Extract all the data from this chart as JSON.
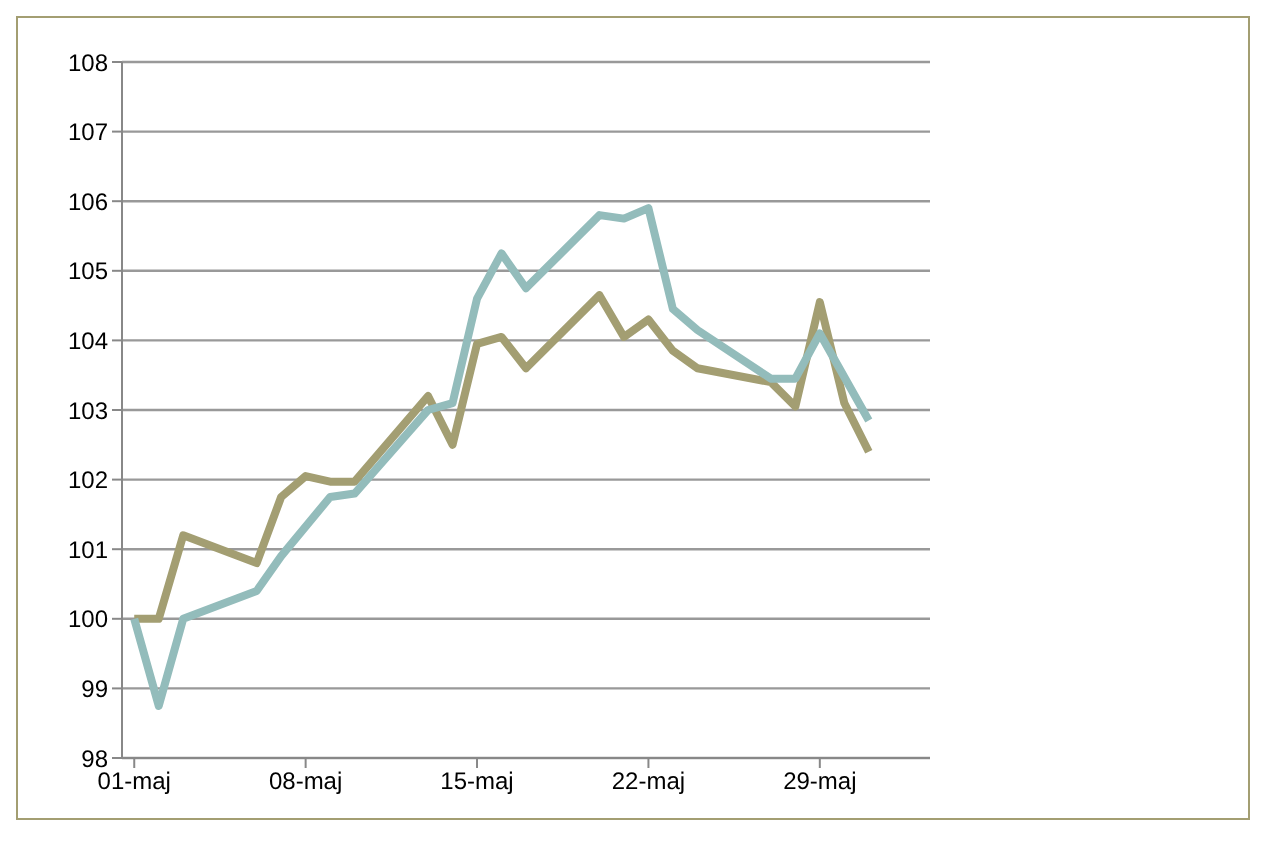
{
  "chart_data": {
    "type": "line",
    "x": [
      "--05-01",
      "--05-02",
      "--05-03",
      "--05-06",
      "--05-07",
      "--05-08",
      "--05-09",
      "--05-10",
      "--05-13",
      "--05-14",
      "--05-15",
      "--05-16",
      "--05-17",
      "--05-20",
      "--05-21",
      "--05-22",
      "--05-23",
      "--05-24",
      "--05-27",
      "--05-28",
      "--05-29",
      "--05-30",
      "--05-31"
    ],
    "series": [
      {
        "color": "#a39e72",
        "values": [
          100.0,
          100.0,
          101.2,
          100.8,
          101.75,
          102.05,
          101.97,
          101.97,
          103.2,
          102.5,
          103.95,
          104.05,
          103.6,
          104.65,
          104.05,
          104.3,
          103.85,
          103.6,
          103.4,
          103.05,
          104.55,
          103.1,
          102.4
        ]
      },
      {
        "color": "#93bcbb",
        "values": [
          100.0,
          98.75,
          100.0,
          100.4,
          100.9,
          null,
          101.75,
          101.8,
          103.0,
          103.1,
          104.6,
          105.25,
          104.75,
          105.8,
          105.75,
          105.9,
          104.45,
          104.15,
          103.45,
          103.45,
          104.1,
          null,
          102.85
        ]
      }
    ],
    "xlim": [
      "--04-30T12:00",
      "--06-02T12:00"
    ],
    "xticks": [
      {
        "value": "--05-01",
        "label": "01-maj"
      },
      {
        "value": "--05-08",
        "label": "08-maj"
      },
      {
        "value": "--05-15",
        "label": "15-maj"
      },
      {
        "value": "--05-22",
        "label": "22-maj"
      },
      {
        "value": "--05-29",
        "label": "29-maj"
      }
    ],
    "ylim": [
      98,
      108
    ],
    "yticks": [
      98,
      99,
      100,
      101,
      102,
      103,
      104,
      105,
      106,
      107,
      108
    ],
    "grid": "y",
    "marker": "none",
    "line_style": "solid"
  }
}
